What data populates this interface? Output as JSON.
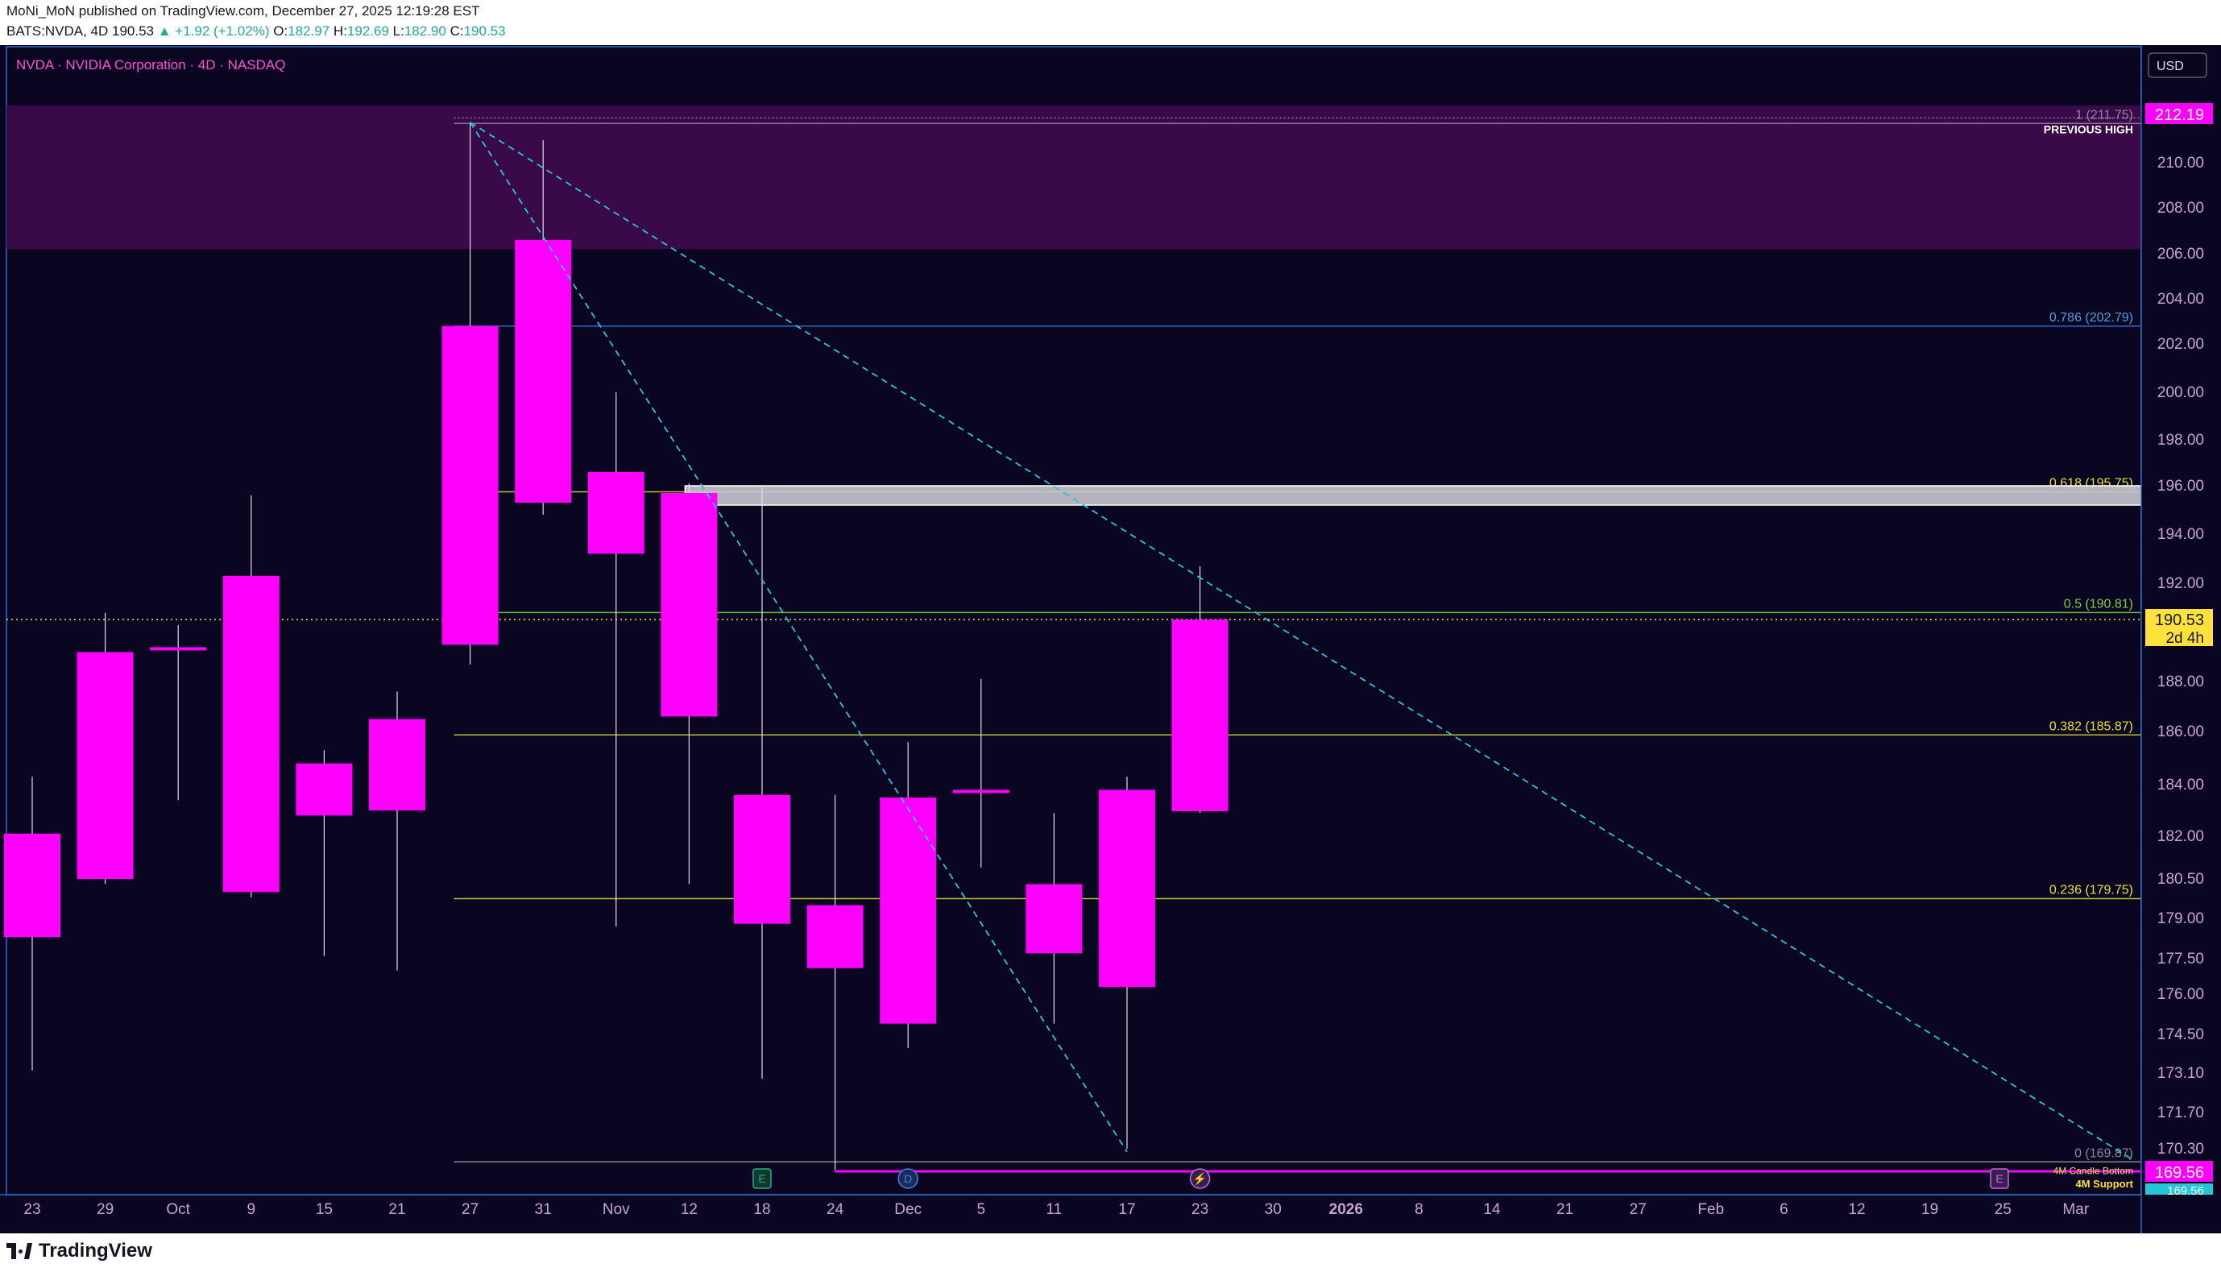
{
  "header": {
    "line1": "MoNi_MoN published on TradingView.com, December 27, 2025 12:19:28 EST",
    "symbol": "BATS:NVDA, 4D",
    "price": "190.53",
    "change": "▲ +1.92 (+1.02%)",
    "o_label": "O:",
    "o_value": "182.97",
    "h_label": "H:",
    "h_value": "192.69",
    "l_label": "L:",
    "l_value": "182.90",
    "c_label": "C:",
    "c_value": "190.53"
  },
  "footer": {
    "logo": "TradingView"
  },
  "colors": {
    "background": "#0a0520",
    "candle": "#ff00ff",
    "fib_line": "#b7c12b",
    "fib_blue": "#2a6cc7",
    "trendline": "#26c6da",
    "zone": "#3a0a48",
    "current_price_bg": "#ffe13d"
  },
  "chart_data": {
    "type": "candlestick",
    "title": "NVDA · NVIDIA Corporation · 4D · NASDAQ",
    "currency": "USD",
    "x_tick_labels": [
      "23",
      "29",
      "Oct",
      "9",
      "15",
      "21",
      "27",
      "31",
      "Nov",
      "12",
      "18",
      "24",
      "Dec",
      "5",
      "11",
      "17",
      "23",
      "30",
      "2026",
      "8",
      "14",
      "21",
      "27",
      "Feb",
      "6",
      "12",
      "19",
      "25",
      "Mar"
    ],
    "y_tick_labels": [
      "210.00",
      "208.00",
      "206.00",
      "204.00",
      "202.00",
      "200.00",
      "198.00",
      "196.00",
      "194.00",
      "192.00",
      "188.00",
      "186.00",
      "184.00",
      "182.00",
      "180.50",
      "179.00",
      "177.50",
      "176.00",
      "174.50",
      "173.10",
      "171.70",
      "170.30"
    ],
    "candles": [
      {
        "o": 182.1,
        "h": 184.3,
        "l": 173.2,
        "c": 178.3
      },
      {
        "o": 180.5,
        "h": 190.8,
        "l": 180.3,
        "c": 189.2
      },
      {
        "o": 189.4,
        "h": 190.3,
        "l": 183.4,
        "c": 189.4
      },
      {
        "o": 180.0,
        "h": 195.6,
        "l": 179.8,
        "c": 192.3
      },
      {
        "o": 182.8,
        "h": 185.3,
        "l": 177.6,
        "c": 184.8
      },
      {
        "o": 183.0,
        "h": 187.6,
        "l": 177.0,
        "c": 186.5
      },
      {
        "o": 189.5,
        "h": 211.8,
        "l": 188.7,
        "c": 202.8
      },
      {
        "o": 206.6,
        "h": 211.0,
        "l": 194.8,
        "c": 195.3
      },
      {
        "o": 196.6,
        "h": 200.0,
        "l": 178.7,
        "c": 193.2
      },
      {
        "o": 195.7,
        "h": 196.1,
        "l": 180.3,
        "c": 186.6
      },
      {
        "o": 183.6,
        "h": 196.0,
        "l": 172.9,
        "c": 178.8
      },
      {
        "o": 179.5,
        "h": 183.6,
        "l": 169.6,
        "c": 177.1
      },
      {
        "o": 174.9,
        "h": 185.6,
        "l": 174.0,
        "c": 183.5
      },
      {
        "o": 183.8,
        "h": 188.1,
        "l": 180.9,
        "c": 183.8
      },
      {
        "o": 180.3,
        "h": 182.9,
        "l": 174.9,
        "c": 177.7
      },
      {
        "o": 176.3,
        "h": 184.3,
        "l": 170.3,
        "c": 183.8
      },
      {
        "o": 182.97,
        "h": 192.69,
        "l": 182.9,
        "c": 190.53
      }
    ],
    "fib_levels": [
      {
        "ratio": "1",
        "value": 211.75,
        "label": "1 (211.75)"
      },
      {
        "ratio": "0.786",
        "value": 202.79,
        "label": "0.786 (202.79)"
      },
      {
        "ratio": "0.618",
        "value": 195.75,
        "label": "0.618 (195.75)"
      },
      {
        "ratio": "0.5",
        "value": 190.81,
        "label": "0.5 (190.81)"
      },
      {
        "ratio": "0.382",
        "value": 185.87,
        "label": "0.382 (185.87)"
      },
      {
        "ratio": "0.236",
        "value": 179.75,
        "label": "0.236 (179.75)"
      },
      {
        "ratio": "0",
        "value": 169.87,
        "label": "0 (169.87)"
      }
    ],
    "annotations": {
      "previous_high": "PREVIOUS HIGH",
      "candle_bottom": "4M Candle Bottom",
      "support": "4M Support"
    },
    "price_badges": {
      "high": "212.19",
      "current": "190.53",
      "countdown": "2d 4h",
      "support": "169.56",
      "low": "169.56"
    },
    "resistance_zone": {
      "top": 212.19,
      "bottom": 206.2
    },
    "gray_zone": {
      "top": 196.0,
      "bottom": 195.2
    },
    "event_markers": [
      "E",
      "D",
      "⚡",
      "E"
    ]
  }
}
